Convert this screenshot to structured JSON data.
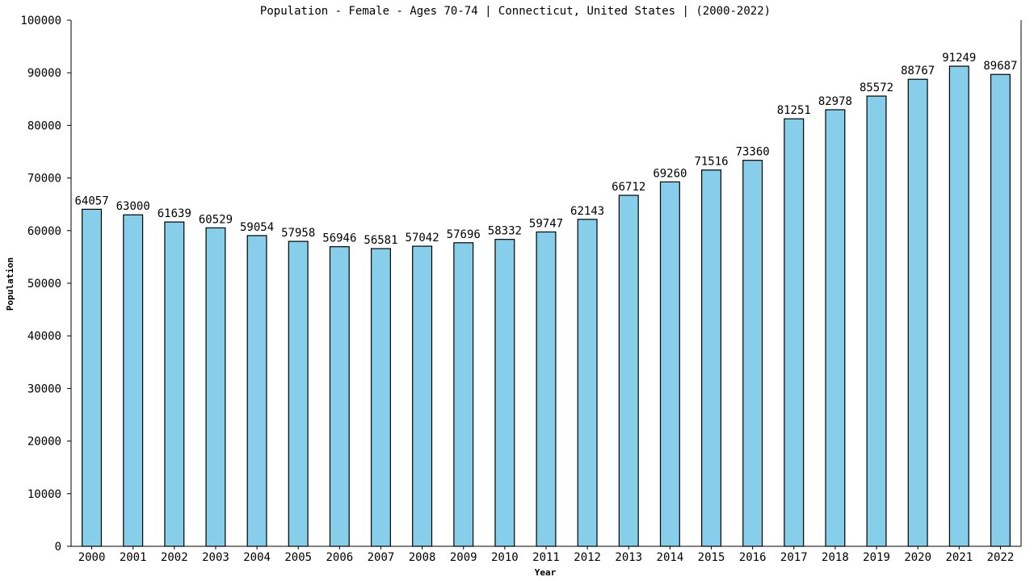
{
  "chart_data": {
    "type": "bar",
    "title": "Population - Female - Ages 70-74 | Connecticut, United States |  (2000-2022)",
    "xlabel": "Year",
    "ylabel": "Population",
    "categories": [
      "2000",
      "2001",
      "2002",
      "2003",
      "2004",
      "2005",
      "2006",
      "2007",
      "2008",
      "2009",
      "2010",
      "2011",
      "2012",
      "2013",
      "2014",
      "2015",
      "2016",
      "2017",
      "2018",
      "2019",
      "2020",
      "2021",
      "2022"
    ],
    "values": [
      64057,
      63000,
      61639,
      60529,
      59054,
      57958,
      56946,
      56581,
      57042,
      57696,
      58332,
      59747,
      62143,
      66712,
      69260,
      71516,
      73360,
      81251,
      82978,
      85572,
      88767,
      91249,
      89687
    ],
    "value_labels": [
      "64057",
      "63000",
      "61639",
      "60529",
      "59054",
      "57958",
      "56946",
      "56581",
      "57042",
      "57696",
      "58332",
      "59747",
      "62143",
      "66712",
      "69260",
      "71516",
      "73360",
      "81251",
      "82978",
      "85572",
      "88767",
      "91249",
      "89687"
    ],
    "ylim": [
      0,
      100000
    ],
    "yticks": [
      "0",
      "10000",
      "20000",
      "30000",
      "40000",
      "50000",
      "60000",
      "70000",
      "80000",
      "90000",
      "100000"
    ],
    "grid": false,
    "legend": "none",
    "bar_color": "#87ceeb",
    "bar_edge_color": "#000000"
  }
}
